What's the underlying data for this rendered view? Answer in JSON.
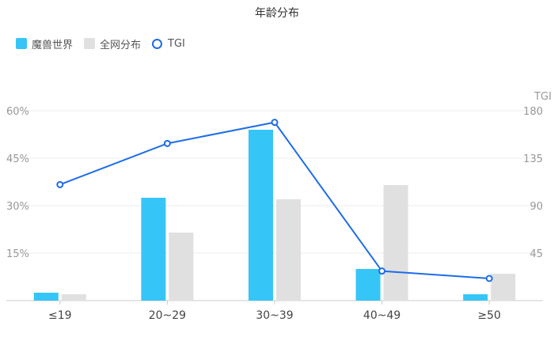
{
  "chart_data": {
    "type": "bar",
    "title": "年龄分布",
    "categories": [
      "≤19",
      "20~29",
      "30~39",
      "40~49",
      "≥50"
    ],
    "series": [
      {
        "name": "魔兽世界",
        "type": "bar",
        "axis": "left",
        "color": "#36C5F7",
        "values": [
          2.5,
          32.5,
          54.0,
          10.0,
          2.0
        ]
      },
      {
        "name": "全网分布",
        "type": "bar",
        "axis": "left",
        "color": "#E0E0E0",
        "values": [
          2.0,
          21.5,
          32.0,
          36.5,
          8.5
        ]
      },
      {
        "name": "TGI",
        "type": "line",
        "axis": "right",
        "color": "#1E6CE8",
        "values": [
          110,
          149,
          169,
          28,
          21
        ]
      }
    ],
    "yleft": {
      "ticks": [
        "",
        "15%",
        "30%",
        "45%",
        "60%"
      ],
      "min": 0,
      "max": 60
    },
    "yright": {
      "label": "TGI",
      "ticks": [
        "",
        "45",
        "90",
        "135",
        "180"
      ],
      "min": 0,
      "max": 180
    },
    "grid": true,
    "legend_position": "top-left"
  }
}
